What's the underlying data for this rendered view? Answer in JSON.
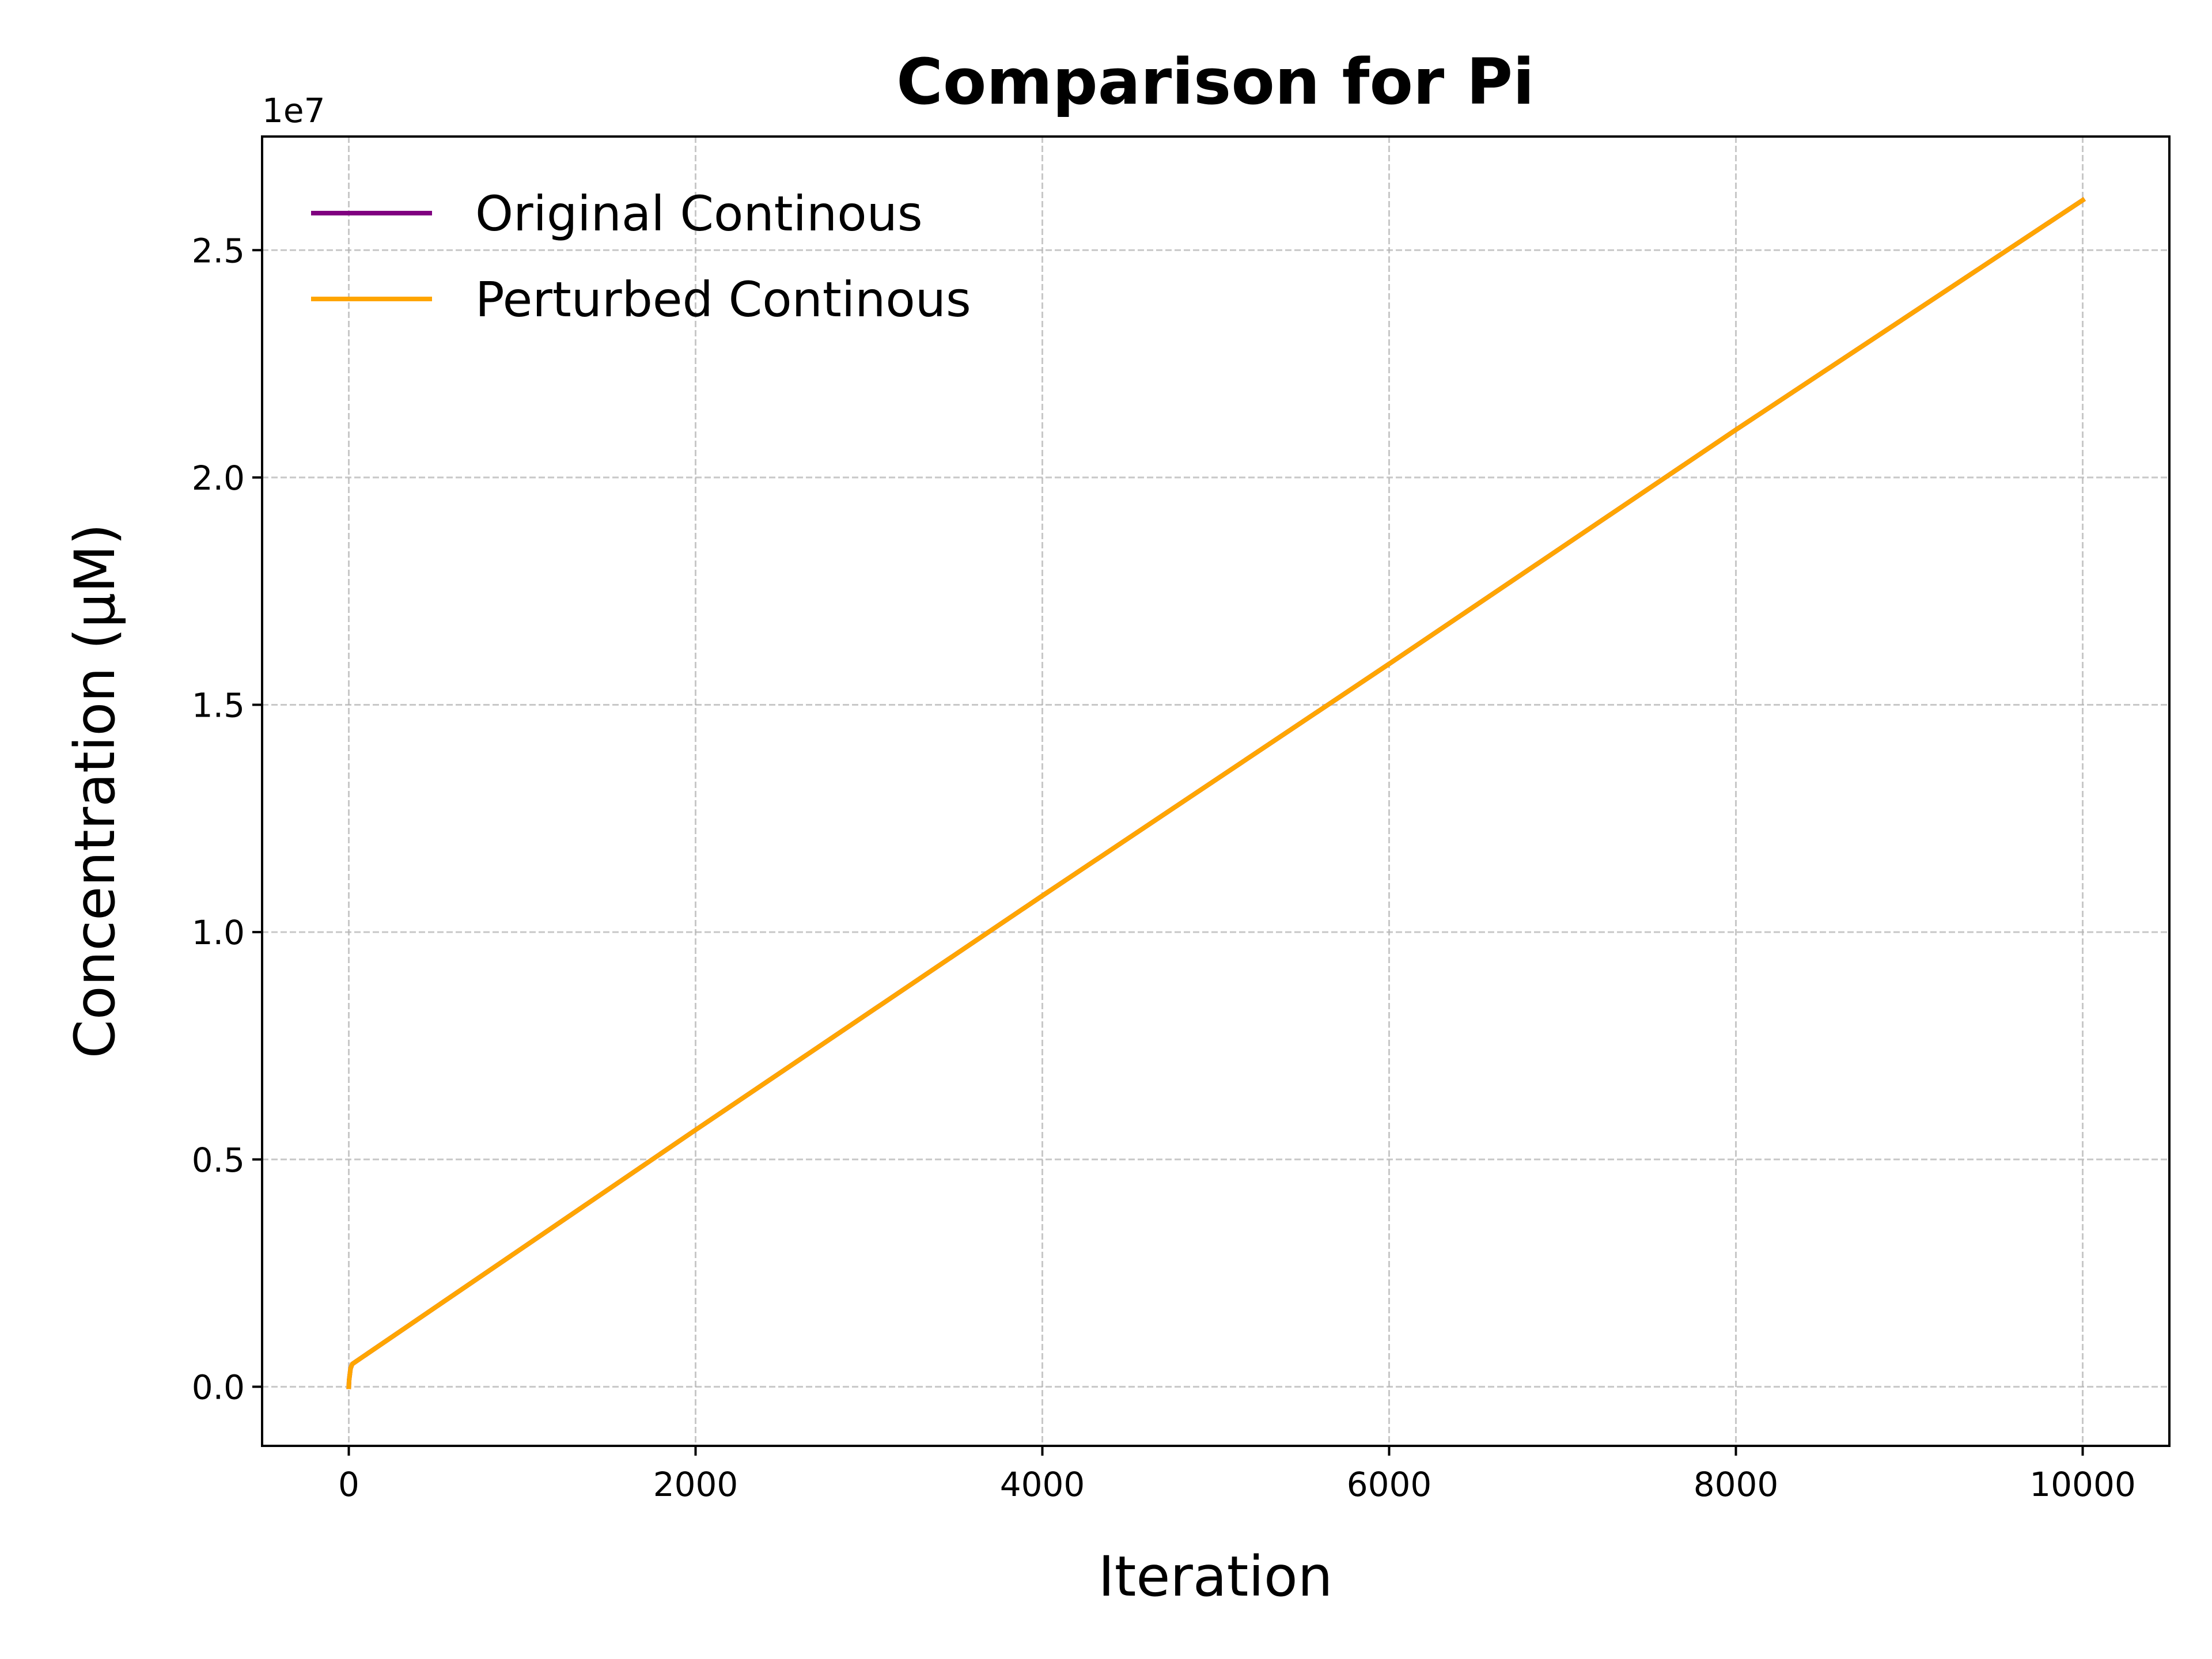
{
  "chart_data": {
    "type": "line",
    "title": "Comparison for Pi",
    "xlabel": "Iteration",
    "ylabel": "Concentration (μM)",
    "y_offset_label": "1e7",
    "y_scale_factor": 10000000,
    "xlim": [
      -500,
      10500
    ],
    "ylim": [
      -1300000,
      27500000
    ],
    "x_ticks": [
      0,
      2000,
      4000,
      6000,
      8000,
      10000
    ],
    "x_tick_labels": [
      "0",
      "2000",
      "4000",
      "6000",
      "8000",
      "10000"
    ],
    "y_ticks": [
      0,
      5000000,
      10000000,
      15000000,
      20000000,
      25000000
    ],
    "y_tick_labels": [
      "0.0",
      "0.5",
      "1.0",
      "1.5",
      "2.0",
      "2.5"
    ],
    "grid": true,
    "legend_position": "top-left",
    "series": [
      {
        "name": "Original Continous",
        "color": "#800080",
        "x": [
          0,
          2,
          10,
          20,
          2000,
          4000,
          6000,
          8000,
          10000
        ],
        "y": [
          0,
          150000,
          400000,
          500000,
          5650000,
          10800000,
          15900000,
          21050000,
          26100000
        ]
      },
      {
        "name": "Perturbed Continous",
        "color": "#FFA500",
        "x": [
          0,
          2,
          10,
          20,
          2000,
          4000,
          6000,
          8000,
          10000
        ],
        "y": [
          0,
          150000,
          400000,
          500000,
          5650000,
          10800000,
          15900000,
          21050000,
          26100000
        ]
      }
    ]
  }
}
